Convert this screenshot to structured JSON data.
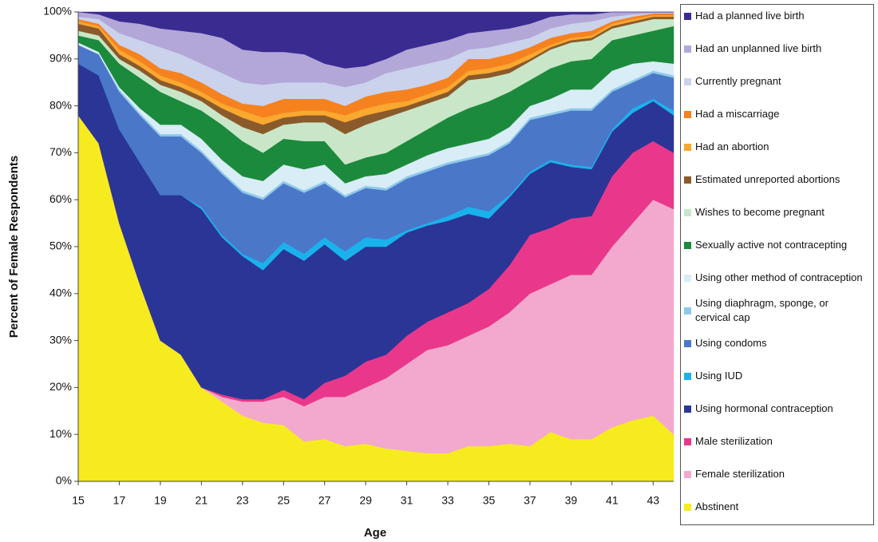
{
  "chart_data": {
    "type": "stacked-area",
    "x_label": "Age",
    "y_label": "Percent of Female Respondents",
    "x": [
      15,
      16,
      17,
      18,
      19,
      20,
      21,
      22,
      23,
      24,
      25,
      26,
      27,
      28,
      29,
      30,
      31,
      32,
      33,
      34,
      35,
      36,
      37,
      38,
      39,
      40,
      41,
      42,
      43,
      44
    ],
    "xlim": [
      15,
      44
    ],
    "xticks": [
      15,
      17,
      19,
      21,
      23,
      25,
      27,
      29,
      31,
      33,
      35,
      37,
      39,
      41,
      43
    ],
    "ylim": [
      0,
      100
    ],
    "yticks": [
      {
        "value": 0,
        "label": "0%"
      },
      {
        "value": 10,
        "label": "10%"
      },
      {
        "value": 20,
        "label": "20%"
      },
      {
        "value": 30,
        "label": "30%"
      },
      {
        "value": 40,
        "label": "40%"
      },
      {
        "value": 50,
        "label": "50%"
      },
      {
        "value": 60,
        "label": "60%"
      },
      {
        "value": 70,
        "label": "70%"
      },
      {
        "value": 80,
        "label": "80%"
      },
      {
        "value": 90,
        "label": "90%"
      },
      {
        "value": 100,
        "label": "100%"
      }
    ],
    "series": [
      {
        "name": "Had a planned live birth",
        "color": "#3a2b91",
        "values": [
          0,
          0.5,
          2,
          2.5,
          3.5,
          4,
          4.5,
          5.5,
          8,
          8.5,
          8.5,
          9,
          11,
          12,
          11.5,
          10,
          8,
          7,
          6,
          4.5,
          4,
          3.5,
          2.5,
          1,
          0.5,
          0.5,
          0,
          0,
          0,
          0
        ]
      },
      {
        "name": "Had an unplanned live birth",
        "color": "#b3a7d8",
        "values": [
          1,
          1,
          2.5,
          3.5,
          4,
          5,
          6.5,
          7.5,
          7,
          7,
          6.5,
          6,
          4,
          4,
          3.5,
          3,
          4,
          4,
          4,
          3.5,
          3.5,
          3,
          3,
          2.5,
          2,
          1.5,
          1,
          0.5,
          0.2,
          0.2
        ]
      },
      {
        "name": "Currently pregnant",
        "color": "#cbd2ec",
        "values": [
          0.5,
          1,
          2.5,
          3,
          4.5,
          4,
          4,
          4.5,
          4.5,
          4.5,
          3.5,
          3.5,
          3.5,
          4,
          3,
          4,
          4.5,
          4.5,
          4,
          2,
          2.5,
          2.5,
          2,
          2,
          2,
          2,
          1,
          0.5,
          0.1,
          0.1
        ]
      },
      {
        "name": "Had a miscarriage",
        "color": "#f5821f",
        "values": [
          0.5,
          0.5,
          1,
          1.5,
          1.5,
          2,
          2,
          2,
          1.5,
          2.5,
          3,
          2.5,
          2.5,
          2,
          2.5,
          2.5,
          2.5,
          2,
          2,
          2.5,
          2,
          2,
          1.5,
          1.5,
          1,
          1,
          0.5,
          0.5,
          0.4,
          0.4
        ]
      },
      {
        "name": "Had an abortion",
        "color": "#f9a830",
        "values": [
          0.5,
          0.5,
          1,
          1,
          1,
          1,
          1,
          1,
          1.5,
          1.5,
          1,
          1,
          1,
          1.5,
          1.5,
          1.5,
          1,
          1,
          1,
          1,
          1,
          1,
          1,
          0.5,
          0.5,
          0.5,
          0.5,
          0.5,
          0.3,
          0.3
        ]
      },
      {
        "name": "Estimated unreported abortions",
        "color": "#8b5a2b",
        "values": [
          1.5,
          1.5,
          1,
          1,
          1,
          1,
          1,
          1.5,
          2,
          2,
          1.5,
          1.5,
          1.5,
          2.5,
          2,
          1.5,
          1,
          1,
          1,
          1,
          1,
          1,
          0.5,
          0.5,
          0.5,
          0.5,
          0.5,
          0.5,
          0.5,
          0.5
        ]
      },
      {
        "name": "Wishes to become pregnant",
        "color": "#c9e7c8",
        "values": [
          1,
          1,
          1,
          1.5,
          1.5,
          2,
          2,
          2,
          3,
          4,
          3,
          4,
          4,
          6.5,
          7,
          7.5,
          6.5,
          5.5,
          4.5,
          6,
          5,
          4,
          4,
          4,
          4,
          4,
          2.5,
          2.5,
          2.5,
          1.5
        ]
      },
      {
        "name": "Sexually active not contracepting",
        "color": "#1c8a3c",
        "values": [
          1.5,
          2.5,
          5,
          6.5,
          7,
          5,
          6,
          7.5,
          7.5,
          6,
          5.5,
          6,
          5,
          4,
          4,
          4.5,
          5,
          5.5,
          6.5,
          7.5,
          8,
          7.5,
          5.5,
          6.5,
          6,
          6.5,
          6.5,
          6,
          6.5,
          8
        ]
      },
      {
        "name": "Using other method of contraception",
        "color": "#d8edf6",
        "values": [
          0.5,
          0.5,
          0.5,
          1,
          2,
          2,
          2.5,
          2.5,
          3,
          3.5,
          3.5,
          4.5,
          3.5,
          2.5,
          2,
          3,
          2.5,
          3,
          3,
          3,
          3,
          3,
          2.5,
          3,
          4,
          4,
          4,
          3.5,
          2,
          2.5
        ]
      },
      {
        "name": "Using diaphragm, sponge, or cervical cap",
        "color": "#8ec9ea",
        "values": [
          0,
          0,
          0.5,
          0.5,
          0.5,
          0.5,
          0.5,
          0.5,
          0.5,
          0.5,
          0.5,
          0.5,
          0.5,
          0.5,
          0.5,
          0.5,
          0.5,
          0.5,
          0.5,
          0.5,
          0.5,
          0.5,
          0.5,
          0.5,
          0.5,
          0.5,
          0.5,
          0.5,
          0.5,
          0.5
        ]
      },
      {
        "name": "Using condoms",
        "color": "#4b77c8",
        "values": [
          4,
          4.5,
          8,
          10,
          12.5,
          12.5,
          11.5,
          13,
          13,
          13.5,
          12.5,
          13,
          11.5,
          11.5,
          10.5,
          10.5,
          11,
          11,
          11,
          10,
          12,
          11,
          11,
          9.5,
          11.5,
          12,
          8,
          5.5,
          5.5,
          7
        ]
      },
      {
        "name": "Using IUD",
        "color": "#1ab2ec",
        "values": [
          0,
          0,
          0,
          0,
          0,
          0,
          0.5,
          0.5,
          0.5,
          1.5,
          1.5,
          1.5,
          1.5,
          2,
          2,
          1.5,
          0.5,
          0.5,
          1,
          1.5,
          1.5,
          0.5,
          0.5,
          0.5,
          0.5,
          0.5,
          0.5,
          1,
          0.5,
          1
        ]
      },
      {
        "name": "Using hormonal contraception",
        "color": "#2b3596",
        "values": [
          11,
          14.5,
          20,
          26,
          31,
          34,
          38,
          33.5,
          30.5,
          27.5,
          30,
          29.5,
          29.5,
          24.5,
          24.5,
          23,
          22,
          20.5,
          19.5,
          19,
          15,
          14.5,
          13,
          14,
          11,
          10,
          9.5,
          8.5,
          8.5,
          8
        ]
      },
      {
        "name": "Male sterilization",
        "color": "#e9388b",
        "values": [
          0,
          0,
          0,
          0,
          0,
          0,
          0,
          0.5,
          0.5,
          0.5,
          1.5,
          1.5,
          3,
          4.5,
          5.5,
          5,
          6,
          6,
          7,
          7,
          8,
          10,
          12.5,
          12,
          12,
          12.5,
          15,
          15,
          12.5,
          12
        ]
      },
      {
        "name": "Female sterilization",
        "color": "#f3a9cd",
        "values": [
          0,
          0,
          0,
          0,
          0,
          0,
          0,
          1,
          3,
          4.5,
          6,
          7.5,
          9,
          10.5,
          12,
          15,
          18.5,
          22,
          23,
          23.5,
          25.5,
          28,
          32.5,
          31.5,
          35,
          35,
          38.5,
          42,
          46,
          48
        ]
      },
      {
        "name": "Abstinent",
        "color": "#f6eb1f",
        "values": [
          78,
          72,
          55,
          42,
          30,
          27,
          20,
          17,
          14,
          12.5,
          12,
          8.5,
          9,
          7.5,
          8,
          7,
          6.5,
          6,
          6,
          7.5,
          7.5,
          8,
          7.5,
          10.5,
          9,
          9,
          11.5,
          13,
          14,
          10
        ]
      }
    ]
  }
}
